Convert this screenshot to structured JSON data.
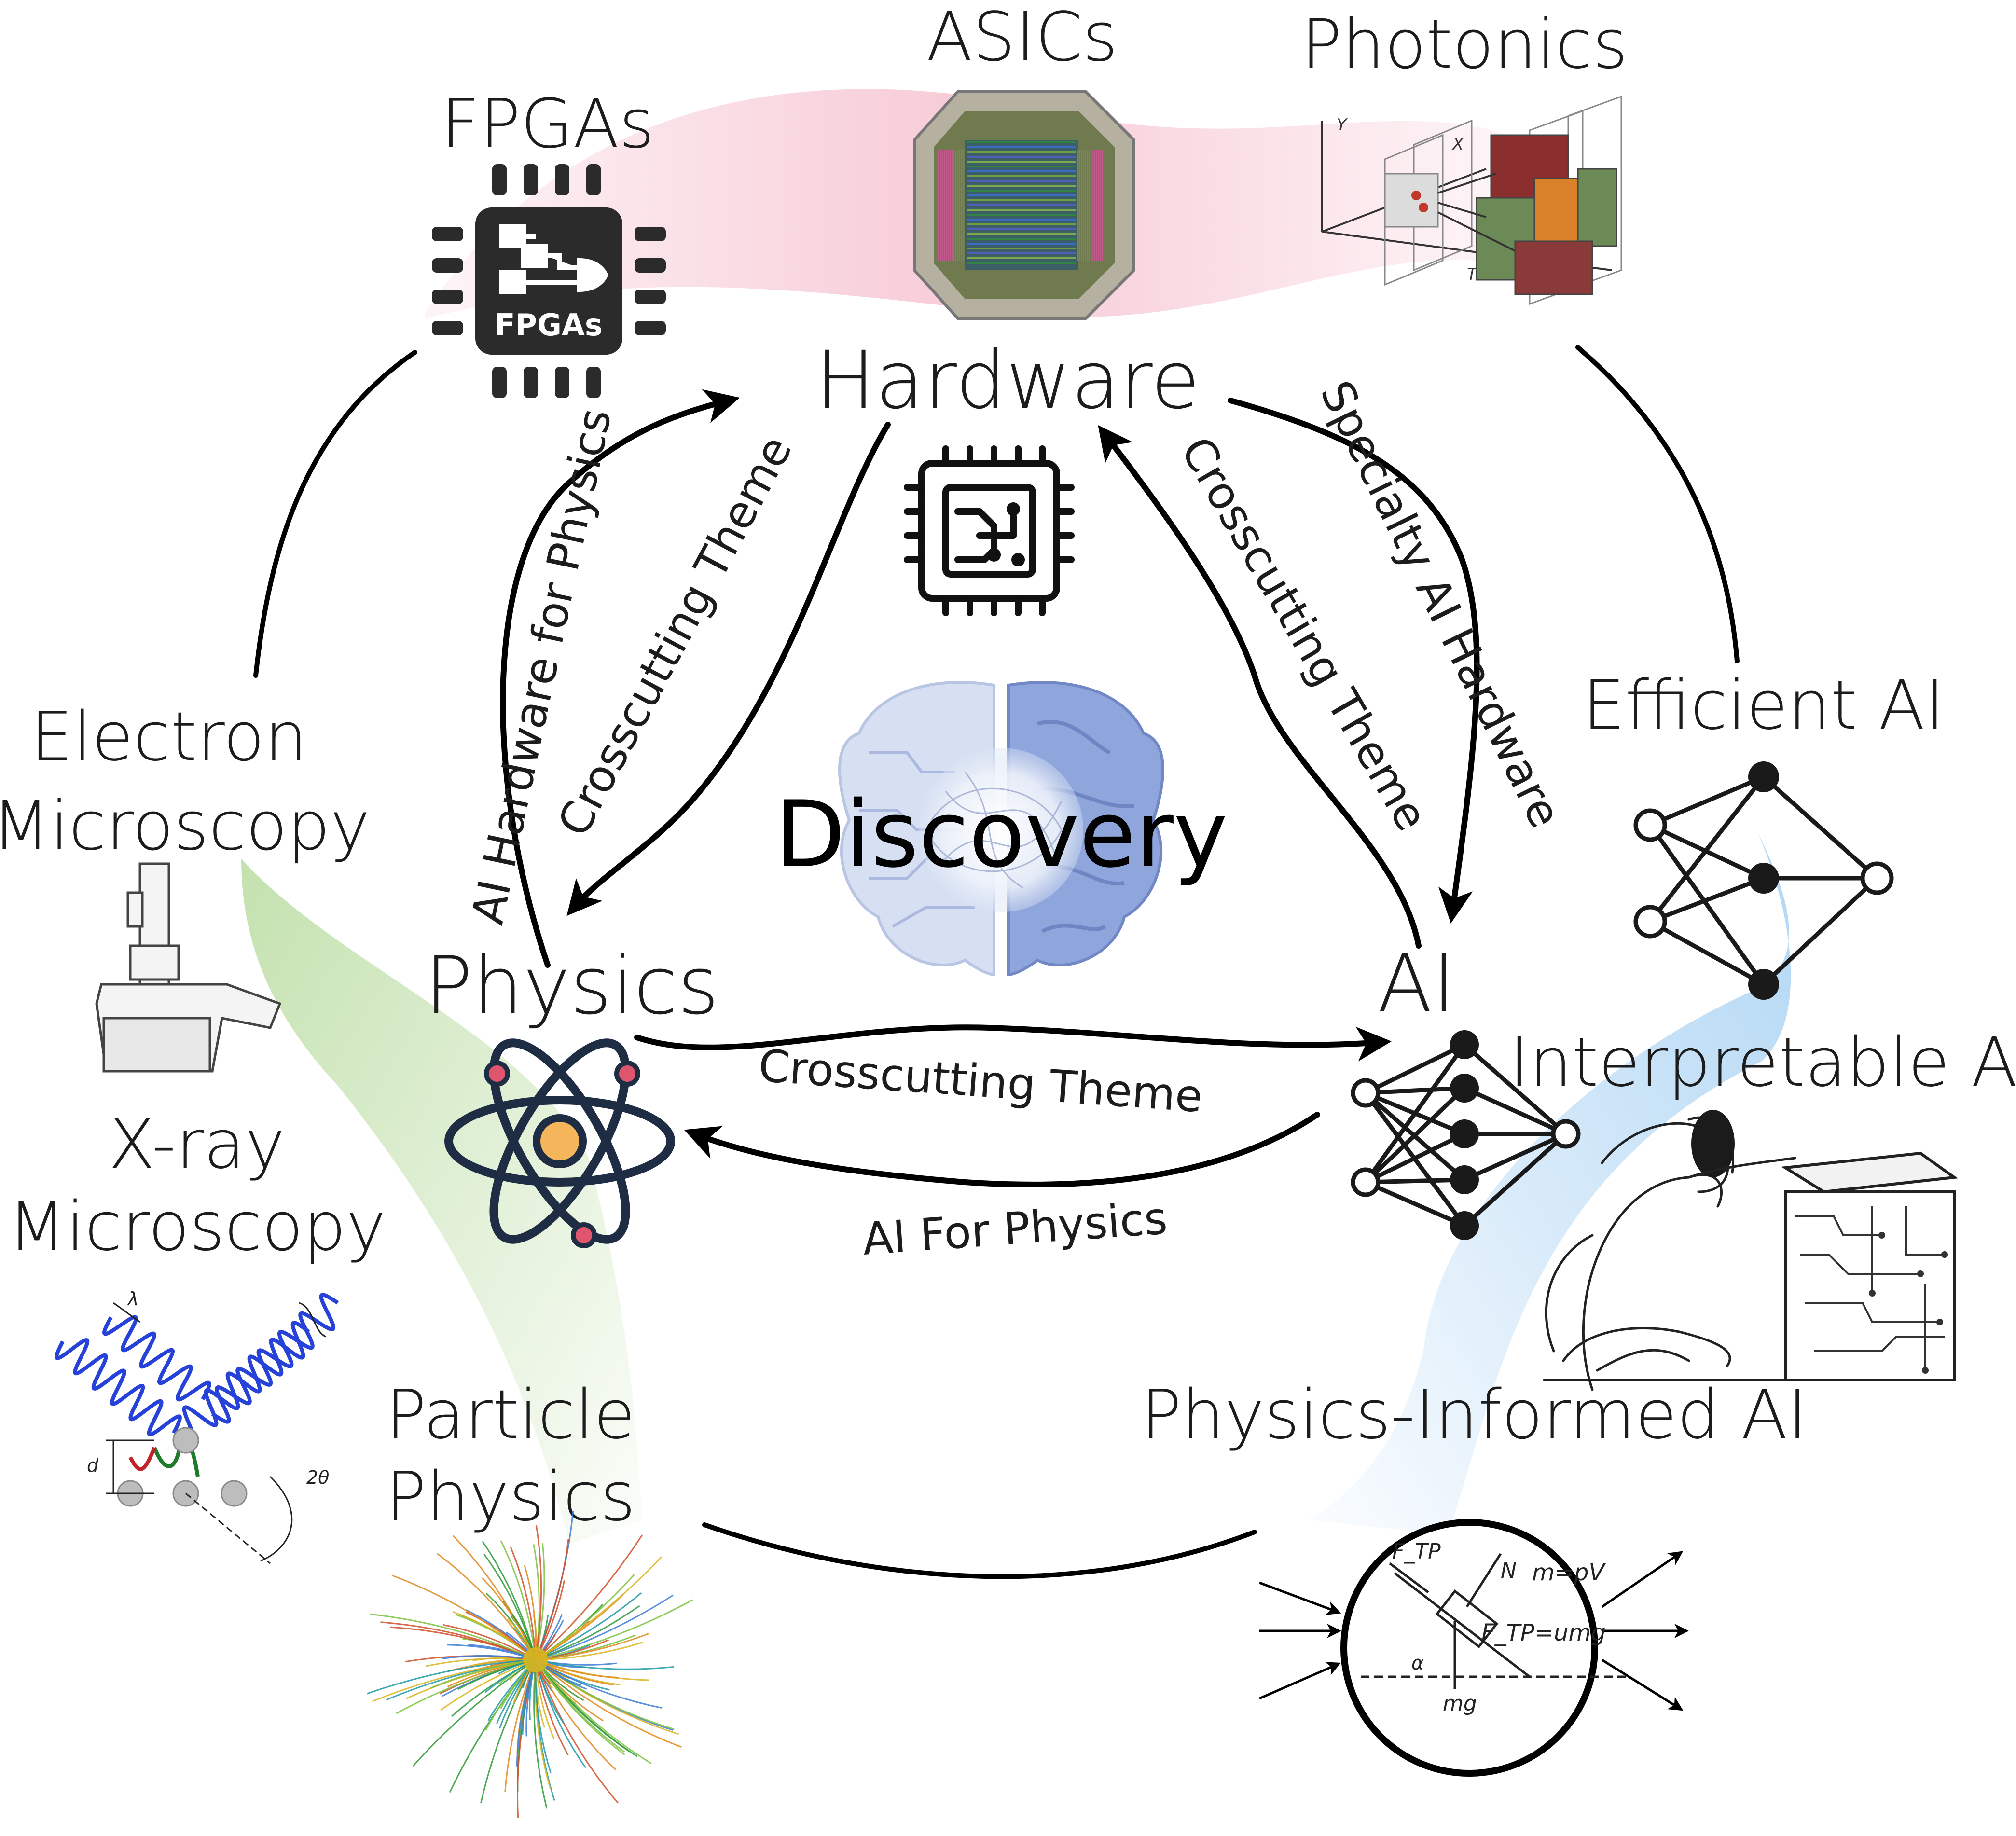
{
  "center": {
    "title": "Discovery"
  },
  "nodes": {
    "hardware": "Hardware",
    "physics": "Physics",
    "ai": "AI"
  },
  "edges": {
    "ai_hardware_for_physics": "AI Hardware for Physics",
    "crosscutting_left": "Crosscutting Theme",
    "crosscutting_right": "Crosscutting Theme",
    "specialty_ai_hardware": "Specialty AI Hardware",
    "crosscutting_bottom": "Crosscutting Theme",
    "ai_for_physics": "AI For Physics"
  },
  "satellites": {
    "fpgas": "FPGAs",
    "fpga_chip_label": "FPGAs",
    "asics": "ASICs",
    "photonics": "Photonics",
    "efficient_ai": "Efficient AI",
    "interpretable_ai": "Interpretable AI",
    "physics_informed_ai": "Physics-Informed AI",
    "electron_microscopy_line1": "Electron",
    "electron_microscopy_line2": "Microscopy",
    "xray_line1": "X-ray",
    "xray_line2": "Microscopy",
    "particle_line1": "Particle",
    "particle_line2": "Physics"
  },
  "figure_annotations": {
    "photonics_axis_y": "Y",
    "photonics_axis_x": "X",
    "photonics_axis_t": "T",
    "xray_lambda": "λ",
    "xray_d": "d",
    "xray_two_theta": "2θ",
    "pinn_f_tp": "F_TP",
    "pinn_n": "N",
    "pinn_m_eq": "m=pV",
    "pinn_f_eq": "F_TP=umg",
    "pinn_alpha": "α",
    "pinn_mg": "mg"
  },
  "colors": {
    "hardware_band": "#f4b8c8",
    "physics_band": "#b9dca0",
    "ai_band": "#a9d2f3",
    "atom_line": "#1f2d44",
    "atom_core": "#f5b55a",
    "atom_electron": "#e0556e",
    "brain_left": "#d6e0f2",
    "brain_right": "#8fa6dd"
  }
}
